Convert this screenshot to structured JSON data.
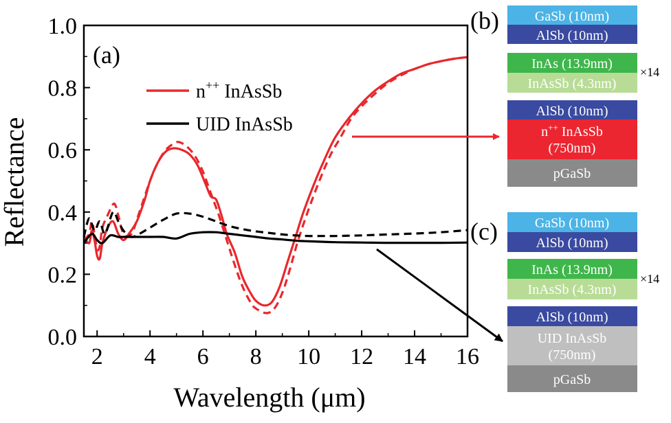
{
  "chart_data": {
    "type": "line",
    "xlabel": "Wavelength (μm)",
    "ylabel": "Reflectance",
    "xlim": [
      1.5,
      16
    ],
    "ylim": [
      0.0,
      1.0
    ],
    "xticks": [
      2,
      4,
      6,
      8,
      10,
      12,
      14,
      16
    ],
    "yticks": [
      0.0,
      0.2,
      0.4,
      0.6,
      0.8,
      1.0
    ],
    "xtick_labels": [
      "2",
      "4",
      "6",
      "8",
      "10",
      "12",
      "14",
      "16"
    ],
    "ytick_labels": [
      "0.0",
      "0.2",
      "0.4",
      "0.6",
      "0.8",
      "1.0"
    ],
    "panel_label": "(a)",
    "legend": [
      {
        "name": "n⁺⁺ InAsSb",
        "base": "n",
        "sup": "++",
        "rest": " InAsSb",
        "color": "#e8282c"
      },
      {
        "name": "UID InAsSb",
        "base": "UID InAsSb",
        "sup": "",
        "rest": "",
        "color": "#000000"
      }
    ],
    "series": [
      {
        "name": "n++ InAsSb (solid)",
        "color": "#e8282c",
        "dash": false,
        "x": [
          1.5,
          1.7,
          1.8,
          1.9,
          2.0,
          2.1,
          2.2,
          2.4,
          2.6,
          2.8,
          3.0,
          3.2,
          3.5,
          3.8,
          4.0,
          4.3,
          4.6,
          4.9,
          5.2,
          5.5,
          5.8,
          6.1,
          6.3,
          6.5,
          6.7,
          6.9,
          7.2,
          7.5,
          7.8,
          8.0,
          8.3,
          8.6,
          8.9,
          9.2,
          9.5,
          9.8,
          10.2,
          10.6,
          11.0,
          11.5,
          12.0,
          12.5,
          13.0,
          13.5,
          14.0,
          14.5,
          15.0,
          15.5,
          16.0
        ],
        "y": [
          0.32,
          0.3,
          0.34,
          0.31,
          0.26,
          0.25,
          0.3,
          0.35,
          0.37,
          0.33,
          0.31,
          0.33,
          0.37,
          0.44,
          0.5,
          0.56,
          0.595,
          0.605,
          0.6,
          0.585,
          0.55,
          0.49,
          0.45,
          0.44,
          0.39,
          0.33,
          0.27,
          0.19,
          0.14,
          0.115,
          0.1,
          0.11,
          0.16,
          0.24,
          0.32,
          0.4,
          0.49,
          0.57,
          0.64,
          0.7,
          0.75,
          0.79,
          0.82,
          0.845,
          0.86,
          0.875,
          0.885,
          0.893,
          0.898
        ]
      },
      {
        "name": "n++ InAsSb (dashed)",
        "color": "#e8282c",
        "dash": true,
        "x": [
          1.5,
          1.7,
          1.8,
          1.9,
          2.0,
          2.1,
          2.2,
          2.4,
          2.6,
          2.7,
          2.8,
          3.0,
          3.3,
          3.6,
          4.0,
          4.3,
          4.6,
          4.9,
          5.1,
          5.4,
          5.7,
          6.0,
          6.3,
          6.6,
          6.9,
          7.2,
          7.5,
          7.8,
          8.0,
          8.4,
          8.7,
          9.0,
          9.3,
          9.6,
          10.0,
          10.4,
          10.8,
          11.2,
          11.6,
          12.0,
          12.5,
          13.0,
          13.5,
          14.0,
          14.5,
          15.0,
          15.5,
          16.0
        ],
        "y": [
          0.31,
          0.33,
          0.37,
          0.33,
          0.28,
          0.29,
          0.35,
          0.39,
          0.425,
          0.42,
          0.39,
          0.33,
          0.33,
          0.4,
          0.5,
          0.56,
          0.6,
          0.62,
          0.625,
          0.61,
          0.58,
          0.53,
          0.46,
          0.39,
          0.31,
          0.23,
          0.16,
          0.11,
          0.09,
          0.075,
          0.09,
          0.14,
          0.22,
          0.31,
          0.41,
          0.5,
          0.58,
          0.64,
          0.7,
          0.74,
          0.78,
          0.815,
          0.84,
          0.86,
          0.875,
          0.885,
          0.893,
          0.898
        ]
      },
      {
        "name": "UID InAsSb (solid)",
        "color": "#000000",
        "dash": false,
        "x": [
          1.5,
          1.8,
          2.0,
          2.2,
          2.5,
          2.8,
          3.0,
          3.5,
          4.0,
          4.5,
          5.0,
          5.5,
          6.0,
          6.5,
          7.0,
          7.5,
          8.0,
          8.5,
          9.0,
          9.5,
          10.0,
          11.0,
          12.0,
          13.0,
          14.0,
          15.0,
          16.0
        ],
        "y": [
          0.3,
          0.33,
          0.31,
          0.3,
          0.325,
          0.32,
          0.32,
          0.32,
          0.32,
          0.32,
          0.315,
          0.33,
          0.335,
          0.335,
          0.33,
          0.325,
          0.32,
          0.315,
          0.312,
          0.308,
          0.306,
          0.303,
          0.302,
          0.301,
          0.301,
          0.301,
          0.302
        ]
      },
      {
        "name": "UID InAsSb (dashed)",
        "color": "#000000",
        "dash": true,
        "x": [
          1.5,
          1.7,
          1.9,
          2.1,
          2.3,
          2.6,
          2.8,
          3.0,
          3.3,
          3.6,
          4.0,
          4.5,
          5.0,
          5.5,
          6.0,
          6.5,
          7.0,
          7.5,
          8.0,
          8.5,
          9.0,
          9.5,
          10.0,
          10.5,
          11.0,
          11.5,
          12.0,
          13.0,
          14.0,
          15.0,
          16.0
        ],
        "y": [
          0.32,
          0.38,
          0.34,
          0.37,
          0.33,
          0.4,
          0.37,
          0.34,
          0.32,
          0.33,
          0.35,
          0.375,
          0.395,
          0.395,
          0.385,
          0.37,
          0.355,
          0.345,
          0.338,
          0.333,
          0.328,
          0.325,
          0.323,
          0.323,
          0.323,
          0.324,
          0.325,
          0.328,
          0.331,
          0.335,
          0.342
        ]
      }
    ]
  },
  "stack_b": {
    "label": "(b)",
    "multiplier": "×14",
    "layers": [
      {
        "name": "gasb-top-layer",
        "text": "GaSb (10nm)",
        "color": "#4bb3e6",
        "text_color": "#ffffff"
      },
      {
        "name": "alsb-top-layer",
        "text": "AlSb (10nm)",
        "color": "#3a4aa0",
        "text_color": "#ffffff"
      },
      {
        "name": "inas-layer",
        "text": "InAs (13.9nm)",
        "color": "#3fb64b",
        "text_color": "#ffffff"
      },
      {
        "name": "inassb-sl-layer",
        "text": "InAsSb (4.3nm)",
        "color": "#b8dc96",
        "text_color": "#ffffff"
      },
      {
        "name": "alsb-bottom-layer",
        "text": "AlSb (10nm)",
        "color": "#3a4aa0",
        "text_color": "#ffffff"
      },
      {
        "name": "npp-inassb-layer",
        "line1_base": "n",
        "line1_sup": "++",
        "line1_rest": " InAsSb",
        "line2": "(750nm)",
        "color": "#ec2631",
        "text_color": "#ffffff"
      },
      {
        "name": "pgasb-layer",
        "text": "pGaSb",
        "color": "#8a8a8a",
        "text_color": "#ffffff"
      }
    ]
  },
  "stack_c": {
    "label": "(c)",
    "multiplier": "×14",
    "layers": [
      {
        "name": "gasb-top-layer",
        "text": "GaSb (10nm)",
        "color": "#4bb3e6",
        "text_color": "#ffffff"
      },
      {
        "name": "alsb-top-layer",
        "text": "AlSb (10nm)",
        "color": "#3a4aa0",
        "text_color": "#ffffff"
      },
      {
        "name": "inas-layer",
        "text": "InAs (13.9nm)",
        "color": "#3fb64b",
        "text_color": "#ffffff"
      },
      {
        "name": "inassb-sl-layer",
        "text": "InAsSb (4.3nm)",
        "color": "#b8dc96",
        "text_color": "#ffffff"
      },
      {
        "name": "alsb-bottom-layer",
        "text": "AlSb (10nm)",
        "color": "#3a4aa0",
        "text_color": "#ffffff"
      },
      {
        "name": "uid-inassb-layer",
        "line1": "UID InAsSb",
        "line2": "(750nm)",
        "color": "#bfbfbf",
        "text_color": "#ffffff"
      },
      {
        "name": "pgasb-layer",
        "text": "pGaSb",
        "color": "#8a8a8a",
        "text_color": "#ffffff"
      }
    ]
  },
  "arrow_colors": {
    "to_b": "#e8282c",
    "to_c": "#000000"
  }
}
